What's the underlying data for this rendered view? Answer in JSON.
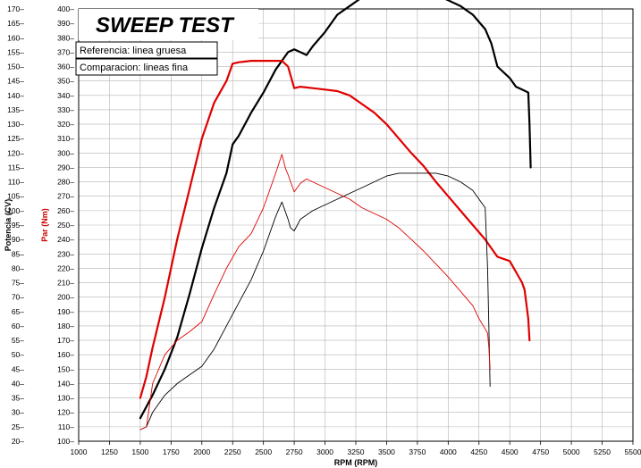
{
  "chart_data": {
    "type": "line",
    "title": "SWEEP TEST",
    "notes": [
      "Referencia: linea gruesa",
      "Comparacion: lineas fina"
    ],
    "xlabel": "RPM (RPM)",
    "ylabel_left_outer": "Potencia (CV)",
    "ylabel_left_inner": "Par (Nm)",
    "xlim": [
      1000,
      5500
    ],
    "x_ticks": [
      1000,
      1250,
      1500,
      1750,
      2000,
      2250,
      2500,
      2750,
      3000,
      3250,
      3500,
      3750,
      4000,
      4250,
      4500,
      4750,
      5000,
      5250,
      5500
    ],
    "y_power_ticks": [
      20,
      25,
      30,
      35,
      40,
      45,
      50,
      55,
      60,
      65,
      70,
      75,
      80,
      85,
      90,
      95,
      100,
      105,
      110,
      115,
      120,
      125,
      130,
      135,
      140,
      145,
      150,
      155,
      160,
      165,
      170
    ],
    "y_torque_ticks": [
      100,
      110,
      120,
      130,
      140,
      150,
      160,
      170,
      180,
      190,
      200,
      210,
      220,
      230,
      240,
      250,
      260,
      270,
      280,
      290,
      300,
      310,
      320,
      330,
      340,
      350,
      360,
      370,
      380,
      390,
      400
    ],
    "ylim_power": [
      20,
      170
    ],
    "ylim_torque": [
      100,
      400
    ],
    "grid": true,
    "colors": {
      "reference": "#000000",
      "torque": "#e00000",
      "grid": "#b4b4b4",
      "torque_label": "#cc0000"
    },
    "series": [
      {
        "name": "Potencia (CV) - referencia",
        "axis": "power",
        "color": "#000000",
        "weight": "thick",
        "x": [
          1500,
          1600,
          1700,
          1800,
          1900,
          2000,
          2100,
          2200,
          2250,
          2300,
          2400,
          2500,
          2600,
          2650,
          2700,
          2750,
          2800,
          2850,
          2900,
          3000,
          3100,
          3200,
          3300,
          3400,
          3500,
          3600,
          3700,
          3800,
          3900,
          4000,
          4100,
          4200,
          4300,
          4350,
          4400,
          4500,
          4550,
          4600,
          4650,
          4660,
          4670
        ],
        "y": [
          28,
          36,
          45,
          56,
          71,
          87,
          101,
          113,
          123,
          126,
          134,
          141,
          149,
          152,
          155,
          156,
          155,
          154,
          157,
          162,
          168,
          171,
          174,
          175,
          176,
          176,
          176,
          176,
          175,
          173,
          171,
          168,
          163,
          158,
          150,
          146,
          143,
          142,
          141,
          130,
          115
        ]
      },
      {
        "name": "Par (Nm) - referencia",
        "axis": "torque",
        "color": "#e00000",
        "weight": "thick",
        "x": [
          1500,
          1550,
          1600,
          1700,
          1800,
          1900,
          2000,
          2100,
          2200,
          2250,
          2300,
          2400,
          2500,
          2600,
          2650,
          2700,
          2750,
          2800,
          2900,
          3000,
          3100,
          3200,
          3300,
          3400,
          3500,
          3600,
          3700,
          3800,
          3900,
          4000,
          4100,
          4200,
          4300,
          4400,
          4500,
          4600,
          4620,
          4650,
          4660
        ],
        "y": [
          130,
          145,
          165,
          200,
          240,
          275,
          310,
          335,
          350,
          362,
          363,
          364,
          364,
          364,
          364,
          360,
          345,
          346,
          345,
          344,
          343,
          340,
          334,
          328,
          320,
          310,
          300,
          291,
          280,
          270,
          260,
          250,
          240,
          228,
          225,
          210,
          205,
          185,
          170
        ]
      },
      {
        "name": "Potencia (CV) - comparacion",
        "axis": "power",
        "color": "#000000",
        "weight": "thin",
        "x": [
          1500,
          1550,
          1600,
          1700,
          1800,
          1900,
          2000,
          2100,
          2200,
          2300,
          2400,
          2500,
          2600,
          2650,
          2700,
          2720,
          2750,
          2800,
          2900,
          3000,
          3100,
          3200,
          3300,
          3400,
          3500,
          3600,
          3700,
          3800,
          3900,
          4000,
          4100,
          4200,
          4250,
          4300,
          4320,
          4330,
          4340
        ],
        "y": [
          24,
          25,
          30,
          36,
          40,
          43,
          46,
          52,
          60,
          68,
          76,
          86,
          98,
          103,
          97,
          94,
          93,
          97,
          100,
          102,
          104,
          106,
          108,
          110,
          112,
          113,
          113,
          113,
          113,
          112,
          110,
          107,
          104,
          101,
          80,
          60,
          39
        ]
      },
      {
        "name": "Par (Nm) - comparacion",
        "axis": "torque",
        "color": "#e00000",
        "weight": "thin",
        "x": [
          1500,
          1550,
          1600,
          1700,
          1800,
          1900,
          2000,
          2100,
          2200,
          2300,
          2400,
          2500,
          2600,
          2650,
          2680,
          2700,
          2750,
          2800,
          2850,
          2900,
          3000,
          3100,
          3200,
          3300,
          3400,
          3500,
          3600,
          3700,
          3800,
          3900,
          4000,
          4100,
          4200,
          4250,
          4300,
          4320,
          4330,
          4340
        ],
        "y": [
          108,
          110,
          140,
          160,
          170,
          176,
          183,
          202,
          220,
          235,
          244,
          262,
          286,
          299,
          289,
          285,
          273,
          279,
          282,
          280,
          276,
          272,
          268,
          262,
          258,
          254,
          248,
          240,
          232,
          223,
          214,
          204,
          194,
          185,
          178,
          175,
          165,
          150
        ]
      }
    ]
  }
}
